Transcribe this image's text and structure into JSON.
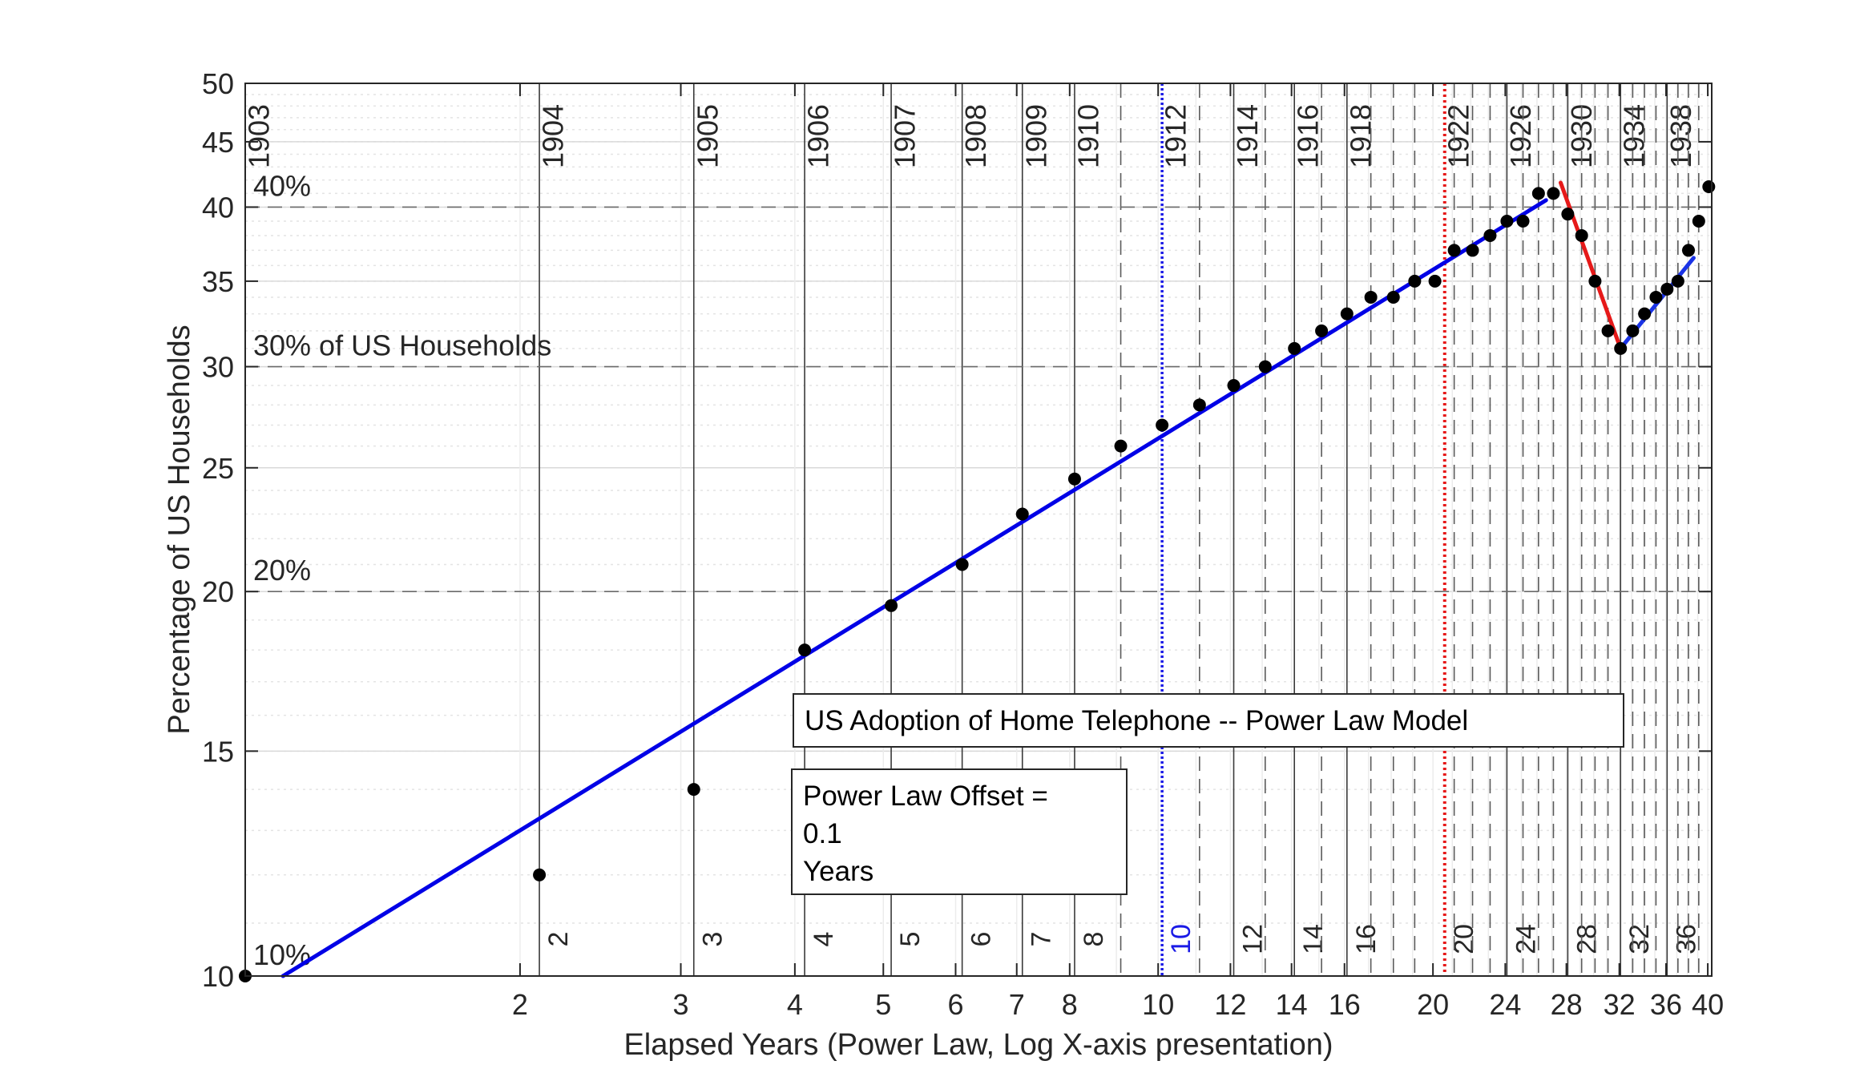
{
  "chart_data": {
    "type": "scatter",
    "title": "US Adoption of Home Telephone -- Power Law Model",
    "xlabel": "Elapsed Years (Power Law, Log X-axis presentation)",
    "ylabel": "Percentage of US Households",
    "x_scale": "log",
    "y_scale": "log",
    "xlim": [
      1,
      40.4
    ],
    "ylim": [
      10,
      50
    ],
    "xticks": [
      2,
      3,
      4,
      5,
      6,
      7,
      8,
      10,
      12,
      14,
      16,
      20,
      24,
      28,
      32,
      36,
      40
    ],
    "yticks": [
      10,
      15,
      20,
      25,
      30,
      35,
      40,
      45,
      50
    ],
    "grid": true,
    "horizontal_reference_lines": [
      {
        "y": 10,
        "label": "10%"
      },
      {
        "y": 20,
        "label": "20%"
      },
      {
        "y": 30,
        "label": "30% of US Households"
      },
      {
        "y": 40,
        "label": "40%"
      }
    ],
    "year_lines": [
      {
        "x": 1.0,
        "year": "1903",
        "elapsed": "",
        "style": "solid"
      },
      {
        "x": 2.1,
        "year": "1904",
        "elapsed": "2",
        "style": "solid"
      },
      {
        "x": 3.1,
        "year": "1905",
        "elapsed": "3",
        "style": "solid"
      },
      {
        "x": 4.1,
        "year": "1906",
        "elapsed": "4",
        "style": "solid"
      },
      {
        "x": 5.1,
        "year": "1907",
        "elapsed": "5",
        "style": "solid"
      },
      {
        "x": 6.1,
        "year": "1908",
        "elapsed": "6",
        "style": "solid"
      },
      {
        "x": 7.1,
        "year": "1909",
        "elapsed": "7",
        "style": "solid"
      },
      {
        "x": 8.1,
        "year": "1910",
        "elapsed": "8",
        "style": "solid"
      },
      {
        "x": 9.1,
        "year": "",
        "elapsed": "",
        "style": "dashed"
      },
      {
        "x": 10.1,
        "year": "1912",
        "elapsed": "10",
        "style": "dotted-blue"
      },
      {
        "x": 11.1,
        "year": "",
        "elapsed": "",
        "style": "dashed"
      },
      {
        "x": 12.1,
        "year": "1914",
        "elapsed": "12",
        "style": "solid"
      },
      {
        "x": 13.1,
        "year": "",
        "elapsed": "",
        "style": "dashed"
      },
      {
        "x": 14.1,
        "year": "1916",
        "elapsed": "14",
        "style": "solid"
      },
      {
        "x": 15.1,
        "year": "",
        "elapsed": "",
        "style": "dashed"
      },
      {
        "x": 16.1,
        "year": "1918",
        "elapsed": "16",
        "style": "solid"
      },
      {
        "x": 17.1,
        "year": "",
        "elapsed": "",
        "style": "dashed"
      },
      {
        "x": 18.1,
        "year": "",
        "elapsed": "",
        "style": "dashed"
      },
      {
        "x": 19.1,
        "year": "",
        "elapsed": "",
        "style": "dashed"
      },
      {
        "x": 20.6,
        "year": "1922",
        "elapsed": "20",
        "style": "dotted-red"
      },
      {
        "x": 21.1,
        "year": "",
        "elapsed": "",
        "style": "dashed"
      },
      {
        "x": 22.1,
        "year": "",
        "elapsed": "",
        "style": "dashed"
      },
      {
        "x": 23.1,
        "year": "",
        "elapsed": "",
        "style": "dashed"
      },
      {
        "x": 24.1,
        "year": "1926",
        "elapsed": "24",
        "style": "solid"
      },
      {
        "x": 25.1,
        "year": "",
        "elapsed": "",
        "style": "dashed"
      },
      {
        "x": 26.1,
        "year": "",
        "elapsed": "",
        "style": "dashed"
      },
      {
        "x": 27.1,
        "year": "",
        "elapsed": "",
        "style": "dashed"
      },
      {
        "x": 28.1,
        "year": "1930",
        "elapsed": "28",
        "style": "solid"
      },
      {
        "x": 29.1,
        "year": "",
        "elapsed": "",
        "style": "dashed"
      },
      {
        "x": 30.1,
        "year": "",
        "elapsed": "",
        "style": "dashed"
      },
      {
        "x": 31.1,
        "year": "",
        "elapsed": "",
        "style": "dashed"
      },
      {
        "x": 32.1,
        "year": "1934",
        "elapsed": "32",
        "style": "solid"
      },
      {
        "x": 33.1,
        "year": "",
        "elapsed": "",
        "style": "dashed"
      },
      {
        "x": 34.1,
        "year": "",
        "elapsed": "",
        "style": "dashed"
      },
      {
        "x": 35.1,
        "year": "",
        "elapsed": "",
        "style": "dashed"
      },
      {
        "x": 36.1,
        "year": "1938",
        "elapsed": "36",
        "style": "solid"
      },
      {
        "x": 37.1,
        "year": "",
        "elapsed": "",
        "style": "dashed"
      },
      {
        "x": 38.1,
        "year": "",
        "elapsed": "",
        "style": "dashed"
      },
      {
        "x": 39.1,
        "year": "",
        "elapsed": "",
        "style": "dashed"
      }
    ],
    "points": [
      {
        "x": 1.0,
        "y": 10
      },
      {
        "x": 2.1,
        "y": 12
      },
      {
        "x": 3.1,
        "y": 14
      },
      {
        "x": 4.1,
        "y": 18
      },
      {
        "x": 5.1,
        "y": 19.5
      },
      {
        "x": 6.1,
        "y": 21
      },
      {
        "x": 7.1,
        "y": 23
      },
      {
        "x": 8.1,
        "y": 24.5
      },
      {
        "x": 9.1,
        "y": 26
      },
      {
        "x": 10.1,
        "y": 27
      },
      {
        "x": 11.1,
        "y": 28
      },
      {
        "x": 12.1,
        "y": 29
      },
      {
        "x": 13.1,
        "y": 30
      },
      {
        "x": 14.1,
        "y": 31
      },
      {
        "x": 15.1,
        "y": 32
      },
      {
        "x": 16.1,
        "y": 33
      },
      {
        "x": 17.1,
        "y": 34
      },
      {
        "x": 18.1,
        "y": 34
      },
      {
        "x": 19.1,
        "y": 35
      },
      {
        "x": 20.1,
        "y": 35
      },
      {
        "x": 21.1,
        "y": 37
      },
      {
        "x": 22.1,
        "y": 37
      },
      {
        "x": 23.1,
        "y": 38
      },
      {
        "x": 24.1,
        "y": 39
      },
      {
        "x": 25.1,
        "y": 39
      },
      {
        "x": 26.1,
        "y": 41
      },
      {
        "x": 27.1,
        "y": 41
      },
      {
        "x": 28.1,
        "y": 39.5
      },
      {
        "x": 29.1,
        "y": 38
      },
      {
        "x": 30.1,
        "y": 35
      },
      {
        "x": 31.1,
        "y": 32
      },
      {
        "x": 32.1,
        "y": 31
      },
      {
        "x": 33.1,
        "y": 32
      },
      {
        "x": 34.1,
        "y": 33
      },
      {
        "x": 35.1,
        "y": 34
      },
      {
        "x": 36.1,
        "y": 34.5
      },
      {
        "x": 37.1,
        "y": 35
      },
      {
        "x": 38.1,
        "y": 37
      },
      {
        "x": 39.1,
        "y": 39
      },
      {
        "x": 40.1,
        "y": 41.5
      }
    ],
    "fit_lines": [
      {
        "name": "blue",
        "color": "#0000e6",
        "x": [
          1.1,
          26.6
        ],
        "y": [
          10,
          40.5
        ]
      },
      {
        "name": "red",
        "color": "#e61919",
        "x": [
          27.6,
          32.1
        ],
        "y": [
          41.8,
          31
        ]
      },
      {
        "name": "blue-recovery",
        "color": "#1a33e6",
        "x": [
          32.1,
          38.6
        ],
        "y": [
          31,
          36.5
        ]
      }
    ],
    "annotation_title": "US Adoption of Home Telephone -- Power Law Model",
    "annotation_offset": [
      "Power Law Offset =",
      "0.1",
      "Years"
    ]
  }
}
